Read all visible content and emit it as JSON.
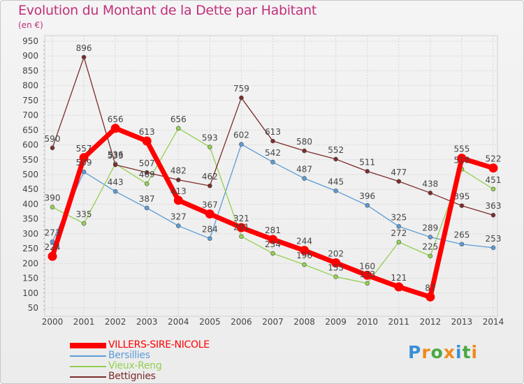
{
  "chart_data": {
    "type": "line",
    "title": "Evolution du Montant de la Dette par Habitant",
    "subtitle": "(en €)",
    "xlabel": "",
    "ylabel": "",
    "ylim": [
      50,
      950
    ],
    "yticks": [
      50,
      100,
      150,
      200,
      250,
      300,
      350,
      400,
      450,
      500,
      550,
      600,
      650,
      700,
      750,
      800,
      850,
      900,
      950
    ],
    "grid": true,
    "categories": [
      "2000",
      "2001",
      "2002",
      "2003",
      "2004",
      "2005",
      "2006",
      "2007",
      "2008",
      "2009",
      "2010",
      "2011",
      "2012",
      "2013",
      "2014"
    ],
    "series": [
      {
        "name": "VILLERS-SIRE-NICOLE",
        "color": "#ff0000",
        "values": [
          224,
          557,
          656,
          613,
          413,
          367,
          321,
          281,
          244,
          202,
          160,
          121,
          87,
          555,
          522
        ]
      },
      {
        "name": "Bersillies",
        "color": "#5b9bd5",
        "values": [
          273,
          509,
          443,
          387,
          327,
          284,
          602,
          542,
          487,
          445,
          396,
          325,
          289,
          265,
          253
        ]
      },
      {
        "name": "Vieux-Reng",
        "color": "#92d050",
        "values": [
          390,
          335,
          536,
          469,
          656,
          593,
          291,
          234,
          196,
          155,
          133,
          272,
          225,
          518,
          451
        ]
      },
      {
        "name": "Bettignies",
        "color": "#7b2c2c",
        "values": [
          590,
          896,
          533,
          507,
          482,
          462,
          759,
          613,
          580,
          552,
          511,
          477,
          438,
          395,
          363
        ]
      }
    ]
  },
  "logo": {
    "letters": [
      "P",
      "r",
      "o",
      "x",
      "i",
      "t",
      "i"
    ],
    "colors": [
      "#3a8fd6",
      "#f08a1c",
      "#4aa842",
      "#f08a1c",
      "#3a8fd6",
      "#4aa842",
      "#f08a1c"
    ]
  }
}
